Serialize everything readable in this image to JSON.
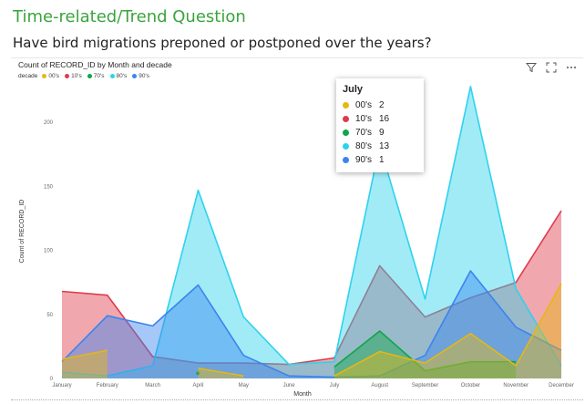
{
  "page": {
    "heading": "Time-related/Trend Question",
    "question": "Have bird migrations preponed or postponed over the years?"
  },
  "visual": {
    "title": "Count of RECORD_ID by Month and decade",
    "legend_title": "decade",
    "toolbar": [
      {
        "name": "filter-icon"
      },
      {
        "name": "focus-mode-icon"
      },
      {
        "name": "more-options-icon"
      }
    ]
  },
  "tooltip": {
    "title": "July",
    "rows": [
      {
        "label": "00's",
        "value": "2",
        "color": "#e6b812"
      },
      {
        "label": "10's",
        "value": "16",
        "color": "#dd3c4c"
      },
      {
        "label": "70's",
        "value": "9",
        "color": "#10a54a"
      },
      {
        "label": "80's",
        "value": "13",
        "color": "#2fd2ee"
      },
      {
        "label": "90's",
        "value": "1",
        "color": "#3a84ef"
      }
    ]
  },
  "chart_data": {
    "type": "area",
    "title": "Count of RECORD_ID by Month and decade",
    "xlabel": "Month",
    "ylabel": "Count of RECORD_ID",
    "ylim": [
      0,
      230
    ],
    "yticks": [
      0,
      50,
      100,
      150,
      200
    ],
    "categories": [
      "January",
      "February",
      "March",
      "April",
      "May",
      "June",
      "July",
      "August",
      "September",
      "October",
      "November",
      "December"
    ],
    "legend_title": "decade",
    "legend_position": "top-left",
    "grid": false,
    "series": [
      {
        "name": "10's",
        "color": "#dd3c4c",
        "values": [
          68,
          65,
          17,
          12,
          12,
          11,
          16,
          88,
          48,
          63,
          75,
          131
        ]
      },
      {
        "name": "80's",
        "color": "#2fd2ee",
        "values": [
          5,
          2,
          10,
          147,
          48,
          11,
          13,
          182,
          62,
          228,
          70,
          10
        ]
      },
      {
        "name": "90's",
        "color": "#3a84ef",
        "values": [
          13,
          49,
          41,
          73,
          18,
          2,
          1,
          2,
          18,
          84,
          40,
          22
        ]
      },
      {
        "name": "70's",
        "color": "#10a54a",
        "values": [
          null,
          null,
          null,
          4,
          null,
          null,
          9,
          37,
          6,
          13,
          13,
          null
        ]
      },
      {
        "name": "00's",
        "color": "#e6b812",
        "values": [
          15,
          22,
          null,
          8,
          2,
          null,
          2,
          21,
          12,
          35,
          10,
          74
        ]
      }
    ]
  }
}
